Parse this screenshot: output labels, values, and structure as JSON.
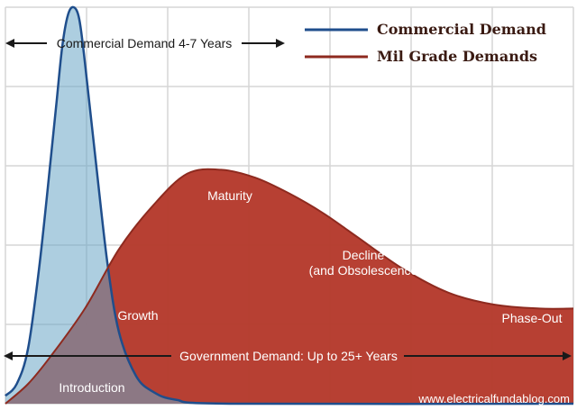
{
  "chart_data": {
    "type": "area",
    "title": "",
    "xlabel": "",
    "ylabel": "",
    "grid": true,
    "legend_position": "top-right",
    "series": [
      {
        "name": "Commercial Demand",
        "color_line": "#1f4e8c",
        "color_fill": "#6aa6c6",
        "points": [
          [
            0,
            0.02
          ],
          [
            2,
            0.05
          ],
          [
            4,
            0.14
          ],
          [
            6,
            0.35
          ],
          [
            8,
            0.62
          ],
          [
            9,
            0.76
          ],
          [
            10,
            0.9
          ],
          [
            11,
            0.98
          ],
          [
            12,
            1.0
          ],
          [
            13,
            0.97
          ],
          [
            14,
            0.86
          ],
          [
            16,
            0.6
          ],
          [
            18,
            0.35
          ],
          [
            20,
            0.18
          ],
          [
            23,
            0.07
          ],
          [
            26,
            0.03
          ],
          [
            30,
            0.01
          ],
          [
            40,
            0.0
          ],
          [
            100,
            0.0
          ]
        ]
      },
      {
        "name": "Mil Grade Demands",
        "color_line": "#8e2a1f",
        "color_fill": "#b53a2c",
        "points": [
          [
            0,
            0.0
          ],
          [
            4,
            0.05
          ],
          [
            8,
            0.12
          ],
          [
            14,
            0.24
          ],
          [
            20,
            0.39
          ],
          [
            26,
            0.5
          ],
          [
            32,
            0.58
          ],
          [
            38,
            0.59
          ],
          [
            44,
            0.57
          ],
          [
            50,
            0.53
          ],
          [
            56,
            0.48
          ],
          [
            62,
            0.42
          ],
          [
            70,
            0.34
          ],
          [
            78,
            0.28
          ],
          [
            86,
            0.25
          ],
          [
            94,
            0.24
          ],
          [
            100,
            0.24
          ]
        ]
      }
    ],
    "range_labels": {
      "commercial": "Commercial Demand 4-7 Years",
      "government": "Government Demand: Up to 25+ Years"
    },
    "phase_labels": [
      "Introduction",
      "Growth",
      "Maturity",
      "Decline\n(and Obsolescence",
      "Phase-Out"
    ],
    "watermark": "www.electricalfundablog.com"
  }
}
